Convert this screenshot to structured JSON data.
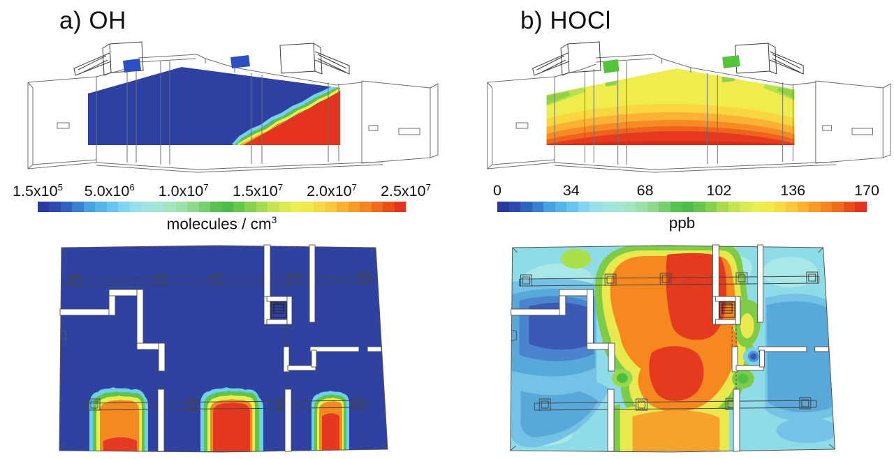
{
  "figure": {
    "background": "#ffffff",
    "panels": [
      {
        "id": "a",
        "title": "a) OH",
        "vent_color": "#2d4fc4",
        "colorbar": {
          "ticks": [
            {
              "text": "1.5x10",
              "sup": "5",
              "pos": 0
            },
            {
              "text": "5.0x10",
              "sup": "6",
              "pos": 0.195
            },
            {
              "text": "1.0x10",
              "sup": "7",
              "pos": 0.396
            },
            {
              "text": "1.5x10",
              "sup": "7",
              "pos": 0.598
            },
            {
              "text": "2.0x10",
              "sup": "7",
              "pos": 0.799
            },
            {
              "text": "2.5x10",
              "sup": "7",
              "pos": 1
            }
          ],
          "unit": {
            "text": "molecules / cm",
            "sup": "3"
          },
          "stops": [
            "#2a3b9c",
            "#2c4bad",
            "#2f63c1",
            "#3a80d0",
            "#47a0e0",
            "#55b5e8",
            "#69c5ee",
            "#82d5f0",
            "#96e0ec",
            "#9fe4df",
            "#a4e6d2",
            "#a2e5c0",
            "#9be0a8",
            "#8dd98d",
            "#76cf6d",
            "#57c24f",
            "#4bbd48",
            "#64c74a",
            "#86d14d",
            "#a8db4f",
            "#c5e450",
            "#dcea51",
            "#ebee50",
            "#f2e94b",
            "#f7d942",
            "#fbc839",
            "#fcb130",
            "#f99b29",
            "#f58522",
            "#f06c1d",
            "#ea4f18",
            "#e43421"
          ]
        }
      },
      {
        "id": "b",
        "title": "b) HOCl",
        "vent_color": "#55c33c",
        "colorbar": {
          "ticks": [
            {
              "text": "0",
              "pos": 0
            },
            {
              "text": "34",
              "pos": 0.2
            },
            {
              "text": "68",
              "pos": 0.4
            },
            {
              "text": "102",
              "pos": 0.6
            },
            {
              "text": "136",
              "pos": 0.8
            },
            {
              "text": "170",
              "pos": 1
            }
          ],
          "unit": {
            "text": "ppb"
          },
          "stops": [
            "#2a3b9c",
            "#2c4bad",
            "#2f63c1",
            "#3a80d0",
            "#47a0e0",
            "#55b5e8",
            "#69c5ee",
            "#82d5f0",
            "#96e0ec",
            "#9fe4df",
            "#a4e6d2",
            "#a2e5c0",
            "#9be0a8",
            "#8dd98d",
            "#76cf6d",
            "#57c24f",
            "#4bbd48",
            "#64c74a",
            "#86d14d",
            "#a8db4f",
            "#c5e450",
            "#dcea51",
            "#ebee50",
            "#f2e94b",
            "#f7d942",
            "#fbc839",
            "#fcb130",
            "#f99b29",
            "#f58522",
            "#f06c1d",
            "#ea4f18",
            "#e43421"
          ]
        }
      }
    ]
  },
  "chart_data": [
    {
      "type": "heatmap",
      "panel": "a",
      "species": "OH",
      "title": "a) OH",
      "unit": "molecules / cm3",
      "colorbar": {
        "min": 150000,
        "max": 25000000,
        "tick_values": [
          150000,
          5000000,
          10000000,
          15000000,
          20000000,
          25000000
        ],
        "tick_labels": [
          "1.5x10^5",
          "5.0x10^6",
          "1.0x10^7",
          "1.5x10^7",
          "2.0x10^7",
          "2.5x10^7"
        ],
        "scale": "discrete rainbow, 32 bands, blue=min red=max"
      },
      "views": [
        {
          "name": "vertical-cross-section",
          "summary": "Attic cross-section slice at colorbar minimum (~1.5x10^5, dark blue) almost everywhere; a wedge in the lower right is at maximum (~2.5x10^7, red) separated by a sharp jagged diagonal front with thin cyan-green-yellow-orange transition bands; two ceiling supply vents shown dark blue."
        },
        {
          "name": "horizontal-plan-section",
          "summary": "Floor plan at minimum concentration (dark blue) everywhere except three high-concentration plumes (~1.5-2.5x10^7, orange/red cores with thin cyan/green/yellow rims) rising from the bottom wall: left at ~x14-28%, center at ~x44-59%, right at ~x73-82% of the plan width, each reaching ~30% into the room."
        }
      ]
    },
    {
      "type": "heatmap",
      "panel": "b",
      "species": "HOCl",
      "title": "b) HOCl",
      "unit": "ppb",
      "colorbar": {
        "min": 0,
        "max": 170,
        "tick_values": [
          0,
          34,
          68,
          102,
          136,
          170
        ],
        "tick_labels": [
          "0",
          "34",
          "68",
          "102",
          "136",
          "170"
        ],
        "scale": "discrete rainbow, 32 bands, blue=min red=max"
      },
      "views": [
        {
          "name": "vertical-cross-section",
          "summary": "Vertically stratified field: ~100-130 ppb (yellow) at the ceiling grading through orange to ~160-170 ppb (red) along the floor; ~60-100 ppb (green) pockets at the two ceiling supply vents and upper slice corners."
        },
        {
          "name": "horizontal-plan-section",
          "summary": "Central rooms at ~140-170 ppb (large orange band with red cores top-center and bottom-center); ~10-40 ppb (dark blue) pocket in the left-center room; periphery rooms ~40-80 ppb (cyan/medium blue); small ~20-30 ppb blue spot in the right hallway with green ~80-100 ppb transition bands near interior walls."
        }
      ]
    }
  ]
}
